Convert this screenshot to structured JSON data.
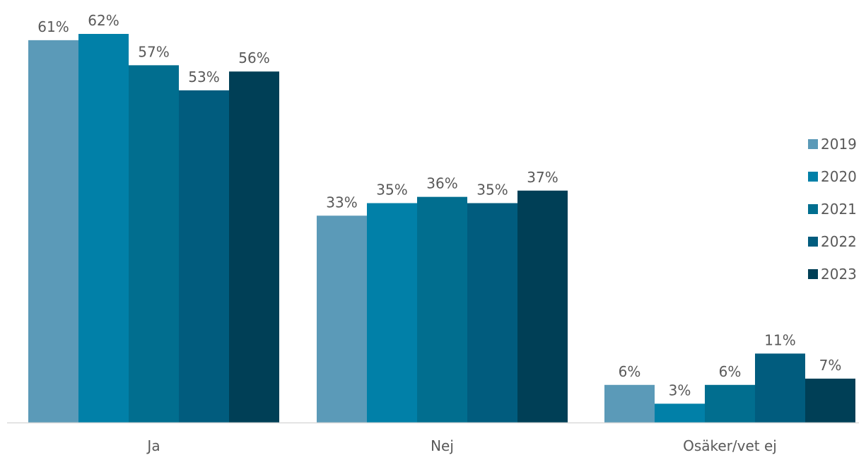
{
  "chart_data": {
    "type": "bar",
    "categories": [
      "Ja",
      "Nej",
      "Osäker/vet ej"
    ],
    "series": [
      {
        "name": "2019",
        "values": [
          61,
          33,
          6
        ],
        "labels": [
          "61%",
          "33%",
          "6%"
        ],
        "color": "#5B9AB8"
      },
      {
        "name": "2020",
        "values": [
          62,
          35,
          3
        ],
        "labels": [
          "62%",
          "35%",
          "3%"
        ],
        "color": "#0180A8"
      },
      {
        "name": "2021",
        "values": [
          57,
          36,
          6
        ],
        "labels": [
          "57%",
          "36%",
          "6%"
        ],
        "color": "#016E8F"
      },
      {
        "name": "2022",
        "values": [
          53,
          35,
          11
        ],
        "labels": [
          "53%",
          "35%",
          "11%"
        ],
        "color": "#015C7E"
      },
      {
        "name": "2023",
        "values": [
          56,
          37,
          7
        ],
        "labels": [
          "56%",
          "37%",
          "7%"
        ],
        "color": "#003F56"
      }
    ],
    "unit": "%",
    "ylim": [
      0,
      62
    ],
    "grid": false,
    "legend_position": "right",
    "axis_color": "#D9D9D9"
  }
}
